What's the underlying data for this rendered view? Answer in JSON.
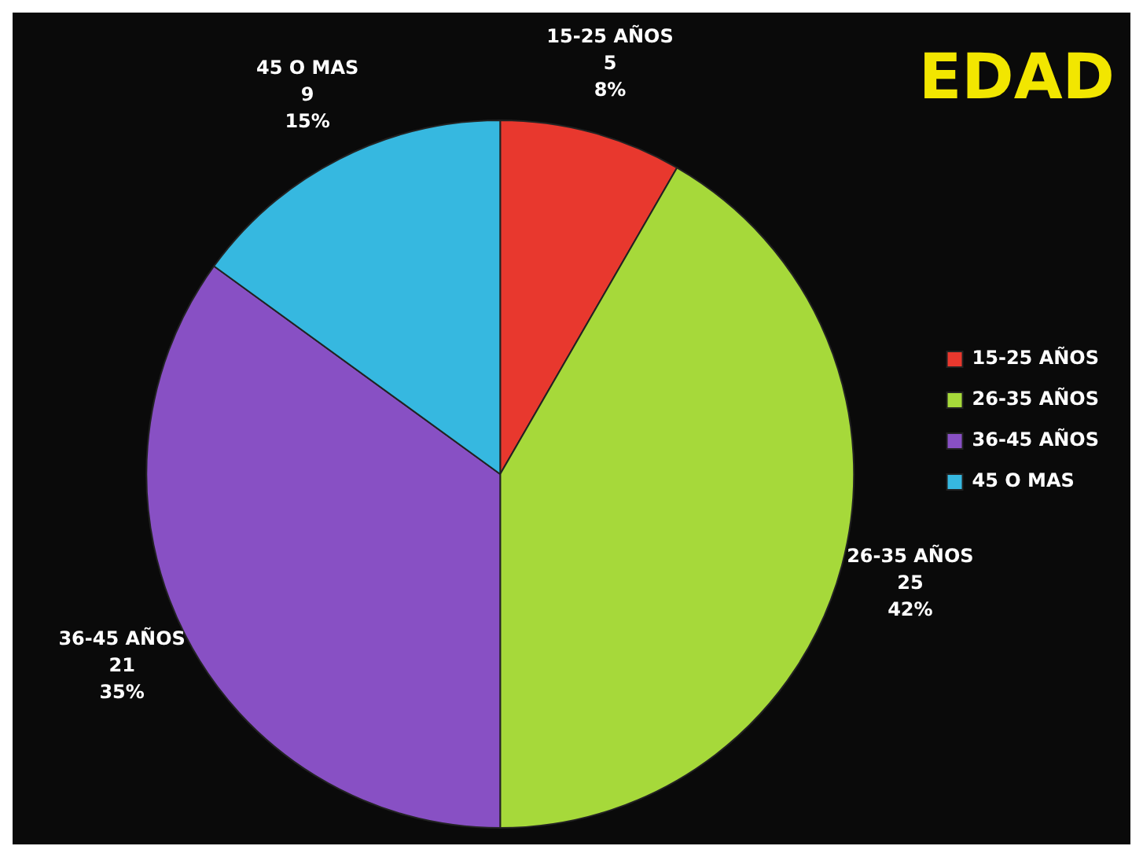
{
  "chart_data": {
    "type": "pie",
    "title": "EDAD",
    "categories": [
      "15-25 AÑOS",
      "26-35 AÑOS",
      "36-45 AÑOS",
      "45 O MAS"
    ],
    "values": [
      5,
      25,
      21,
      9
    ],
    "value_labels": [
      "5\n8%",
      "25\n42%",
      "21\n35%",
      "9\n15%"
    ],
    "colors": [
      "#e8382e",
      "#a6d93a",
      "#8850c4",
      "#36b8e0"
    ],
    "legend": "right"
  }
}
